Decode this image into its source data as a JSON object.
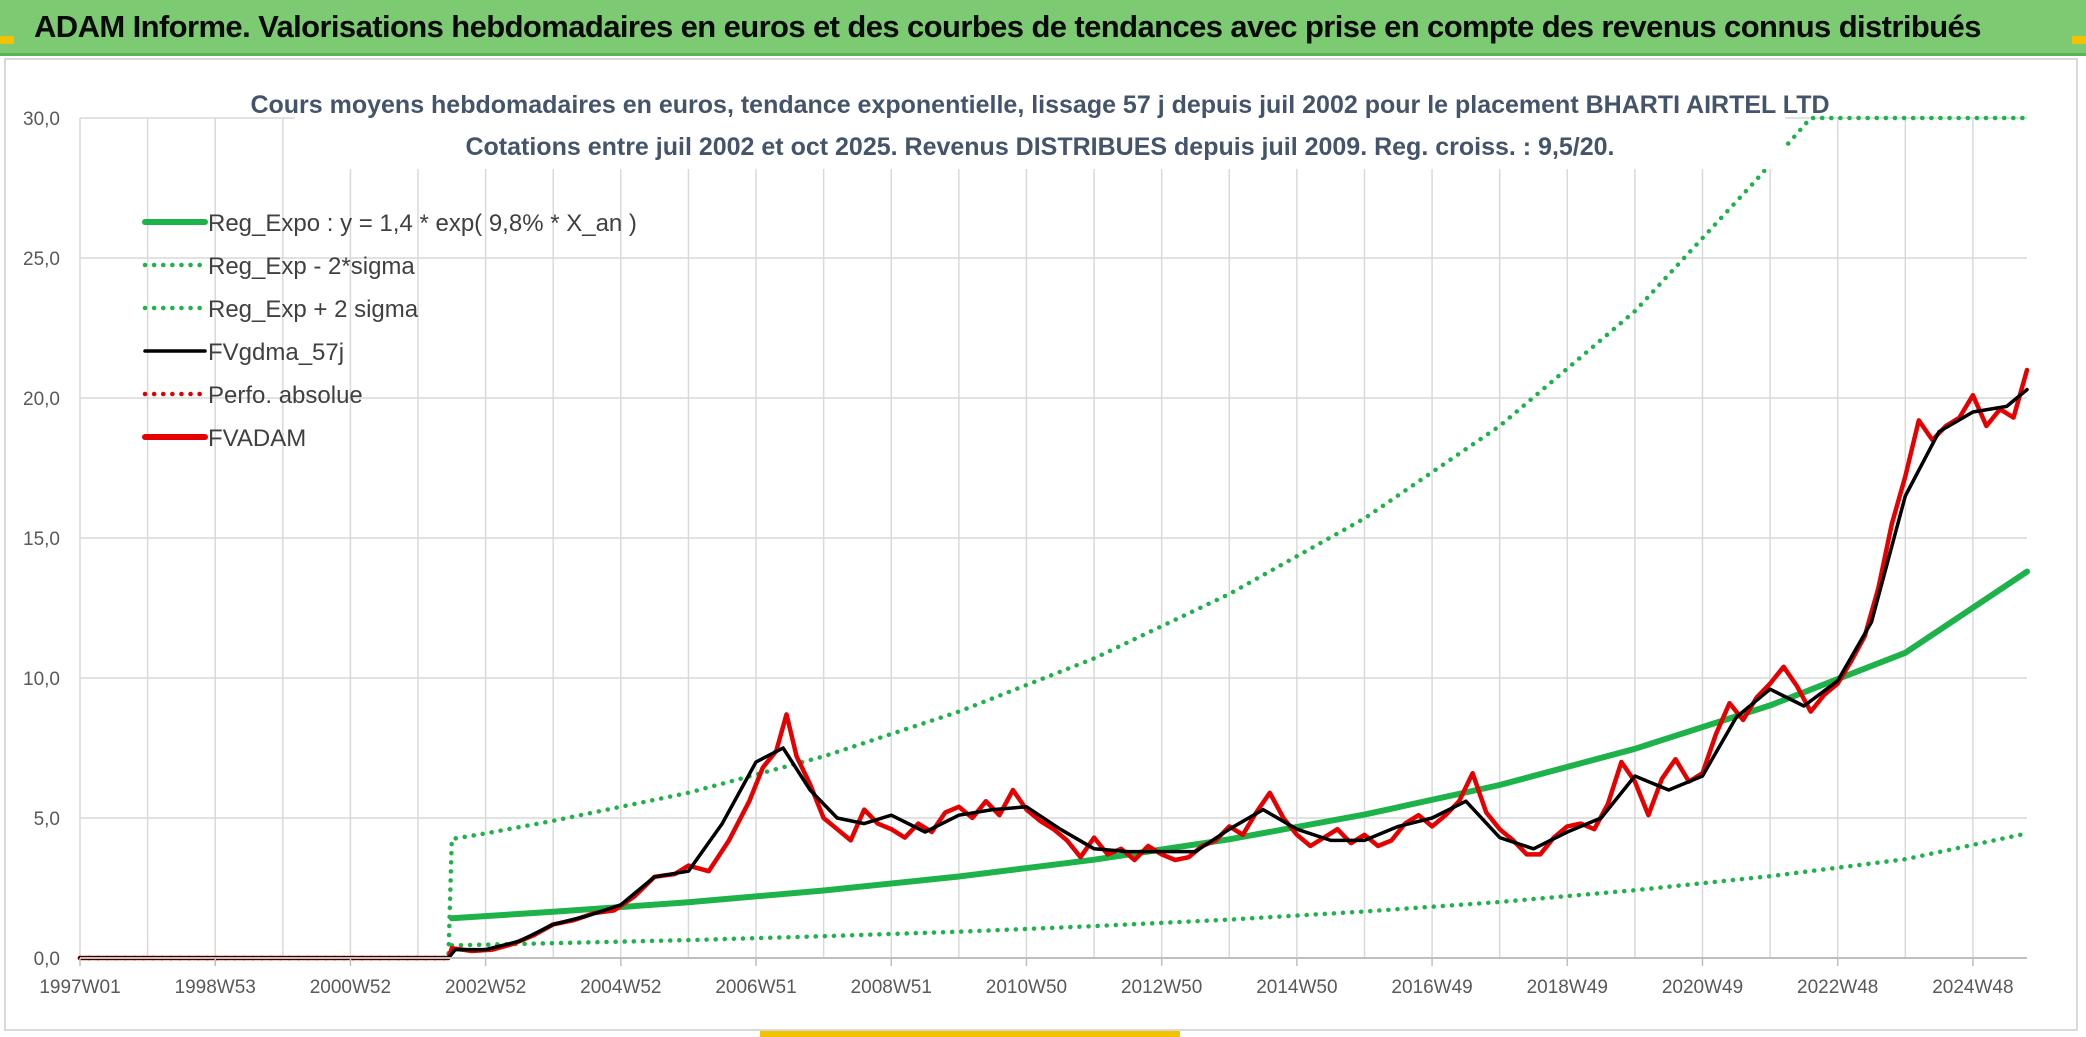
{
  "page": {
    "title": "ADAM Informe. Valorisations hebdomadaires en euros et des courbes de tendances avec prise en compte des revenus connus distribués"
  },
  "colors": {
    "title_bar": "#7ccb73",
    "regression": "#1db34a",
    "sigma_bands": "#1db34a",
    "moving_average": "#000000",
    "absolute_perf": "#e00000",
    "fvadam": "#e60000",
    "grid": "#d9d9d9",
    "corner_accent": "#f2c200"
  },
  "chart_data": {
    "type": "line",
    "title_line1": "Cours moyens hebdomadaires en euros, tendance exponentielle, lissage 57 j depuis juil 2002 pour le placement BHARTI AIRTEL LTD",
    "title_line2": "Cotations entre juil 2002 et oct 2025. Revenus DISTRIBUES depuis juil 2009. Reg. croiss. : 9,5/20.",
    "xlabel": "",
    "ylabel": "",
    "ylim": [
      0,
      30
    ],
    "xlim": [
      1997.0,
      2025.8
    ],
    "yticks": [
      "0,0",
      "5,0",
      "10,0",
      "15,0",
      "20,0",
      "25,0",
      "30,0"
    ],
    "ytick_values": [
      0,
      5,
      10,
      15,
      20,
      25,
      30
    ],
    "xticks": [
      "1997W01",
      "1998W53",
      "2000W52",
      "2002W52",
      "2004W52",
      "2006W51",
      "2008W51",
      "2010W50",
      "2012W50",
      "2014W50",
      "2016W49",
      "2018W49",
      "2020W49",
      "2022W48",
      "2024W48"
    ],
    "xtick_values": [
      1997.0,
      1999.0,
      2001.0,
      2003.0,
      2005.0,
      2007.0,
      2009.0,
      2011.0,
      2013.0,
      2015.0,
      2017.0,
      2019.0,
      2021.0,
      2023.0,
      2025.0
    ],
    "grid": true,
    "legend_position": "top-left",
    "legend": [
      {
        "label": "Reg_Expo : y = 1,4 * exp( 9,8% *  X_an )",
        "style": "solid-thick",
        "color": "#1db34a"
      },
      {
        "label": "Reg_Exp - 2*sigma",
        "style": "dotted",
        "color": "#1db34a"
      },
      {
        "label": "Reg_Exp + 2 sigma",
        "style": "dotted",
        "color": "#1db34a"
      },
      {
        "label": "FVgdma_57j",
        "style": "solid",
        "color": "#000000"
      },
      {
        "label": "Perfo. absolue",
        "style": "dotted",
        "color": "#e00000"
      },
      {
        "label": "FVADAM",
        "style": "solid-thick",
        "color": "#e60000"
      }
    ],
    "series": [
      {
        "name": "Reg_Expo : y = 1,4 * exp( 9,8% *  X_an )",
        "x": [
          2002.5,
          2004,
          2006,
          2008,
          2010,
          2012,
          2014,
          2016,
          2018,
          2020,
          2022,
          2024,
          2025.8
        ],
        "y": [
          1.42,
          1.65,
          1.99,
          2.41,
          2.91,
          3.51,
          4.24,
          5.12,
          6.18,
          7.47,
          9.02,
          10.9,
          13.8
        ]
      },
      {
        "name": "Reg_Exp - 2*sigma",
        "x": [
          2002.5,
          2004,
          2006,
          2008,
          2010,
          2012,
          2014,
          2016,
          2018,
          2020,
          2022,
          2024,
          2025.8
        ],
        "y": [
          0.45,
          0.53,
          0.64,
          0.78,
          0.94,
          1.14,
          1.37,
          1.66,
          2.0,
          2.42,
          2.92,
          3.53,
          4.45
        ]
      },
      {
        "name": "Reg_Exp + 2 sigma",
        "x": [
          1997.0,
          2002.45,
          2002.5,
          2003,
          2004,
          2006,
          2008,
          2010,
          2012,
          2014,
          2016,
          2018,
          2020,
          2021.8,
          2022.6,
          2025.8
        ],
        "y": [
          0,
          0,
          4.25,
          4.45,
          4.9,
          5.9,
          7.2,
          8.8,
          10.7,
          13.0,
          15.7,
          19.0,
          23.1,
          27.8,
          30.0,
          30.0
        ]
      },
      {
        "name": "FVgdma_57j",
        "x": [
          1997.0,
          2002.45,
          2002.55,
          2003.0,
          2003.5,
          2004.0,
          2004.5,
          2005.0,
          2005.5,
          2006.0,
          2006.5,
          2007.0,
          2007.4,
          2007.8,
          2008.2,
          2008.6,
          2009.0,
          2009.5,
          2010.0,
          2010.5,
          2011.0,
          2011.5,
          2012.0,
          2012.5,
          2013.0,
          2013.5,
          2014.0,
          2014.5,
          2015.0,
          2015.5,
          2016.0,
          2016.5,
          2017.0,
          2017.5,
          2018.0,
          2018.5,
          2019.0,
          2019.5,
          2020.0,
          2020.5,
          2021.0,
          2021.5,
          2022.0,
          2022.5,
          2023.0,
          2023.5,
          2024.0,
          2024.5,
          2025.0,
          2025.5,
          2025.8
        ],
        "y": [
          0.0,
          0.0,
          0.3,
          0.3,
          0.6,
          1.2,
          1.5,
          1.9,
          2.9,
          3.1,
          4.8,
          7.0,
          7.5,
          6.0,
          5.0,
          4.8,
          5.1,
          4.5,
          5.1,
          5.3,
          5.4,
          4.6,
          3.9,
          3.8,
          3.8,
          3.8,
          4.6,
          5.3,
          4.6,
          4.2,
          4.2,
          4.7,
          5.0,
          5.6,
          4.3,
          3.9,
          4.5,
          5.0,
          6.5,
          6.0,
          6.5,
          8.6,
          9.6,
          9.0,
          9.9,
          12.0,
          16.5,
          18.8,
          19.5,
          19.7,
          20.3
        ]
      },
      {
        "name": "Perfo. absolue",
        "x": [
          1997.0,
          2002.45
        ],
        "y": [
          0,
          0
        ]
      },
      {
        "name": "FVADAM",
        "x": [
          1997.0,
          2002.45,
          2002.5,
          2002.8,
          2003.1,
          2003.4,
          2003.7,
          2004.0,
          2004.3,
          2004.6,
          2004.9,
          2005.2,
          2005.5,
          2005.8,
          2006.0,
          2006.3,
          2006.6,
          2006.9,
          2007.1,
          2007.3,
          2007.45,
          2007.6,
          2007.8,
          2008.0,
          2008.2,
          2008.4,
          2008.6,
          2008.8,
          2009.0,
          2009.2,
          2009.4,
          2009.6,
          2009.8,
          2010.0,
          2010.2,
          2010.4,
          2010.6,
          2010.8,
          2011.0,
          2011.2,
          2011.4,
          2011.6,
          2011.8,
          2012.0,
          2012.2,
          2012.4,
          2012.6,
          2012.8,
          2013.0,
          2013.2,
          2013.4,
          2013.6,
          2013.8,
          2014.0,
          2014.2,
          2014.4,
          2014.6,
          2014.8,
          2015.0,
          2015.2,
          2015.4,
          2015.6,
          2015.8,
          2016.0,
          2016.2,
          2016.4,
          2016.6,
          2016.8,
          2017.0,
          2017.2,
          2017.4,
          2017.6,
          2017.8,
          2018.0,
          2018.2,
          2018.4,
          2018.6,
          2018.8,
          2019.0,
          2019.2,
          2019.4,
          2019.6,
          2019.8,
          2020.0,
          2020.2,
          2020.4,
          2020.6,
          2020.8,
          2021.0,
          2021.2,
          2021.4,
          2021.6,
          2021.8,
          2022.0,
          2022.2,
          2022.4,
          2022.6,
          2022.8,
          2023.0,
          2023.2,
          2023.4,
          2023.6,
          2023.8,
          2024.0,
          2024.2,
          2024.4,
          2024.6,
          2024.8,
          2025.0,
          2025.2,
          2025.4,
          2025.6,
          2025.8
        ],
        "y": [
          0.0,
          0.0,
          0.35,
          0.25,
          0.3,
          0.5,
          0.8,
          1.2,
          1.35,
          1.6,
          1.7,
          2.2,
          2.9,
          3.0,
          3.3,
          3.1,
          4.2,
          5.6,
          6.8,
          7.4,
          8.7,
          7.2,
          6.2,
          5.0,
          4.6,
          4.2,
          5.3,
          4.8,
          4.6,
          4.3,
          4.8,
          4.5,
          5.2,
          5.4,
          5.0,
          5.6,
          5.1,
          6.0,
          5.3,
          4.9,
          4.6,
          4.2,
          3.6,
          4.3,
          3.7,
          3.9,
          3.5,
          4.0,
          3.7,
          3.5,
          3.6,
          4.0,
          4.2,
          4.7,
          4.4,
          5.2,
          5.9,
          5.0,
          4.4,
          4.0,
          4.3,
          4.6,
          4.1,
          4.4,
          4.0,
          4.2,
          4.8,
          5.1,
          4.7,
          5.1,
          5.6,
          6.6,
          5.2,
          4.6,
          4.2,
          3.7,
          3.7,
          4.3,
          4.7,
          4.8,
          4.6,
          5.5,
          7.0,
          6.3,
          5.1,
          6.4,
          7.1,
          6.3,
          6.6,
          8.0,
          9.1,
          8.5,
          9.3,
          9.8,
          10.4,
          9.7,
          8.8,
          9.4,
          9.8,
          10.6,
          11.5,
          13.2,
          15.5,
          17.2,
          19.2,
          18.5,
          19.0,
          19.3,
          20.1,
          19.0,
          19.6,
          19.3,
          21.0
        ]
      }
    ]
  }
}
